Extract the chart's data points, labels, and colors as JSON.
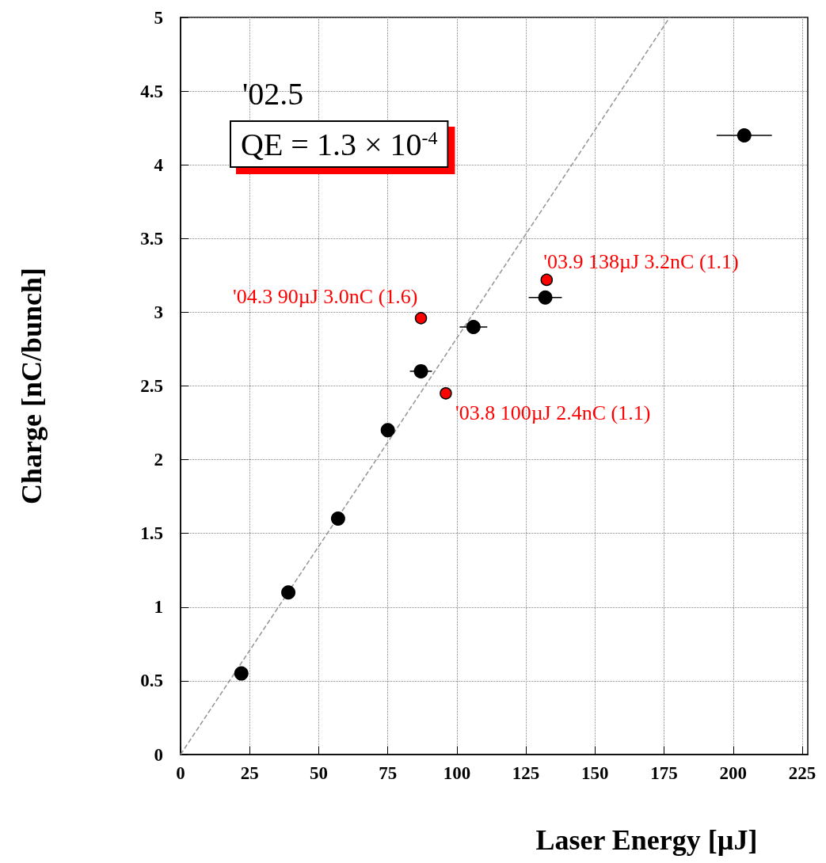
{
  "chart_data": {
    "type": "scatter",
    "xlabel": "Laser Energy [µJ]",
    "ylabel": "Charge [nC/bunch]",
    "xlim": [
      0,
      227
    ],
    "xticks": [
      0,
      25,
      50,
      75,
      100,
      125,
      150,
      175,
      200,
      225
    ],
    "ylim": [
      0,
      5
    ],
    "yticks": [
      0,
      0.5,
      1,
      1.5,
      2,
      2.5,
      3,
      3.5,
      4,
      4.5,
      5
    ],
    "grid": true,
    "marker": "circle",
    "series": [
      {
        "type": "line",
        "color": "#999999",
        "line_style": "dashed",
        "marker": "none",
        "x": [
          0,
          177
        ],
        "values": [
          0,
          5
        ]
      },
      {
        "color": "#000000",
        "x": [
          22,
          39,
          57,
          75,
          87,
          106,
          132,
          204
        ],
        "values": [
          0.55,
          1.1,
          1.6,
          2.2,
          2.6,
          2.9,
          3.1,
          4.2
        ],
        "xerrors": [
          null,
          null,
          null,
          null,
          4,
          5,
          6,
          10
        ]
      },
      {
        "color": "#ff0000",
        "x": [
          87,
          96,
          132.5
        ],
        "values": [
          2.96,
          2.45,
          3.22
        ]
      }
    ],
    "annotations": [
      "'02.5",
      "QE = 1.3 × 10$^{-4}$",
      {
        "text": "'04.3 90µJ 3.0nC (1.6)",
        "x": 87,
        "y": 2.96
      },
      {
        "text": "'03.8 100µJ 2.4nC (1.1)",
        "x": 96,
        "y": 2.45
      },
      {
        "text": "'03.9 138µJ 3.2nC (1.1)",
        "x": 132.5,
        "y": 3.22
      }
    ]
  }
}
